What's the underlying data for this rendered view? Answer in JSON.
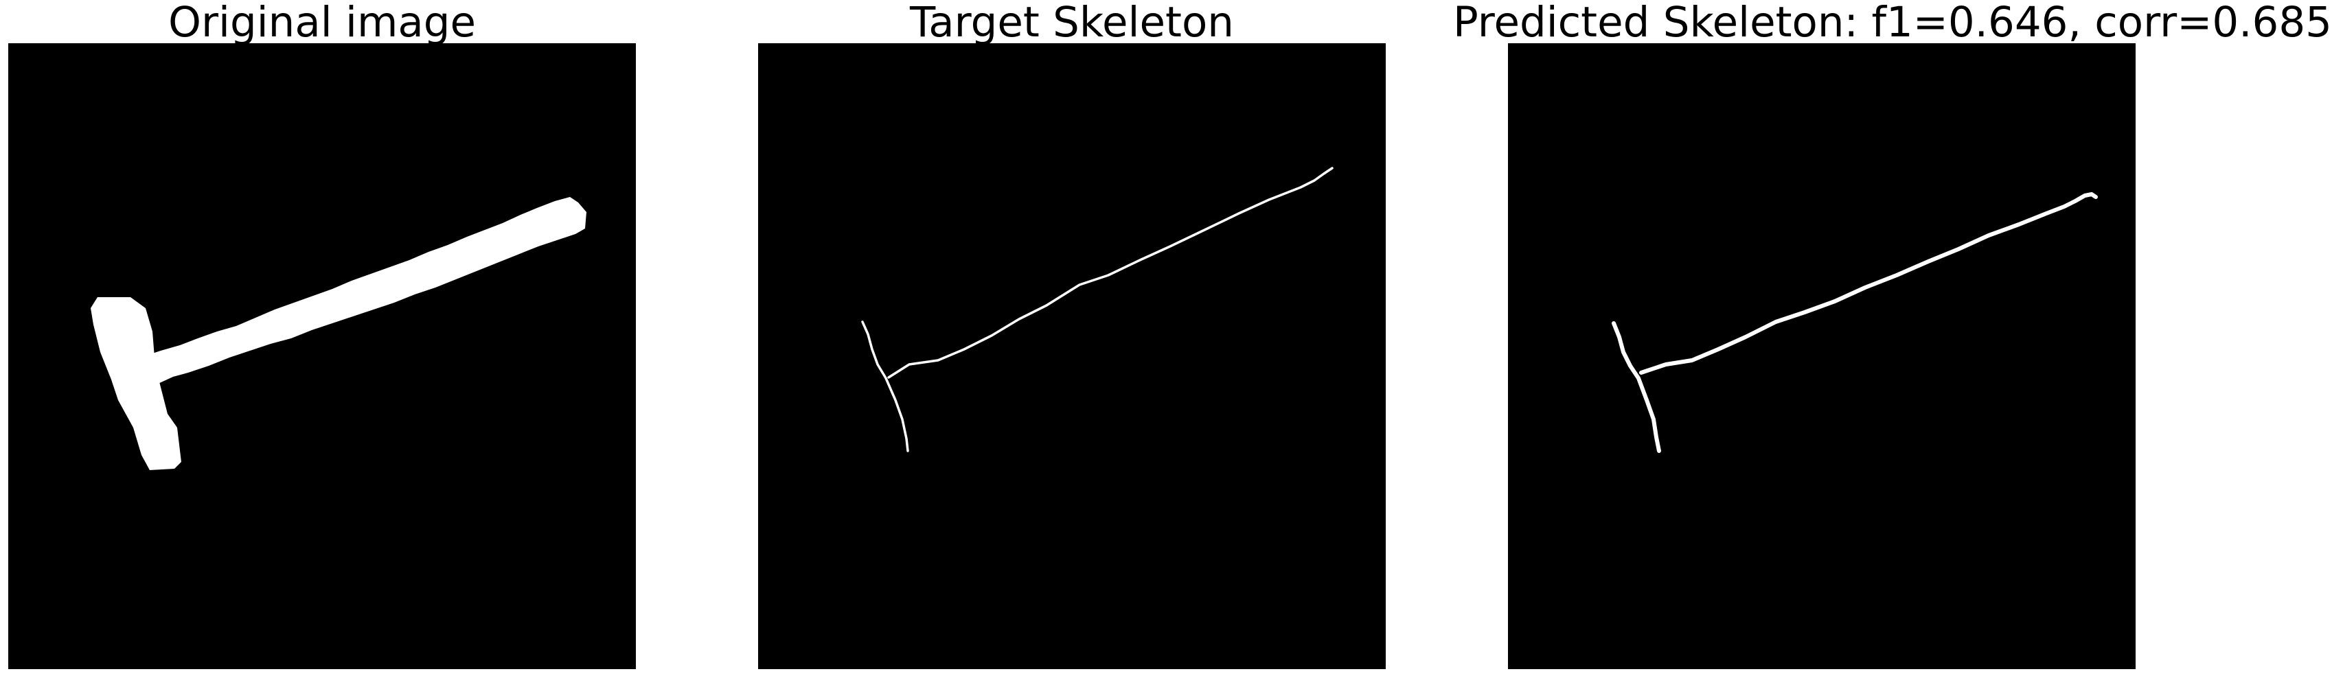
{
  "panels": [
    {
      "title": "Original image",
      "background_color": "#000000",
      "foreground_color": "#ffffff"
    },
    {
      "title": "Target Skeleton",
      "background_color": "#000000",
      "foreground_color": "#ffffff"
    },
    {
      "title": "Predicted Skeleton: f1=0.646, corr=0.685",
      "background_color": "#000000",
      "foreground_color": "#ffffff"
    }
  ]
}
